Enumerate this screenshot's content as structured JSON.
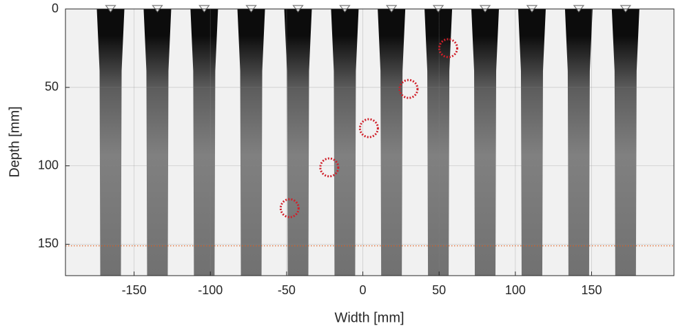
{
  "chart_data": {
    "type": "scatter",
    "xlabel": "Width [mm]",
    "ylabel": "Depth [mm]",
    "x": [
      -48,
      -22,
      4,
      30,
      56
    ],
    "values": [
      127,
      101,
      76,
      51,
      25
    ],
    "color": "#d0202a",
    "elements_x": [
      -165.4,
      -134.7,
      -104,
      -73.2,
      -42.5,
      -11.8,
      18.8,
      49.5,
      80.2,
      110.9,
      141.6,
      172.3
    ],
    "element_color": "#000000",
    "line_y": 151,
    "line_color": "#e06020",
    "xlim": [
      -195,
      204
    ],
    "ylim": [
      0,
      170
    ],
    "y_inverted": true,
    "xticks": [
      -150,
      -100,
      -50,
      0,
      50,
      100,
      150
    ],
    "yticks": [
      0,
      50,
      100,
      150
    ],
    "grid": true
  }
}
